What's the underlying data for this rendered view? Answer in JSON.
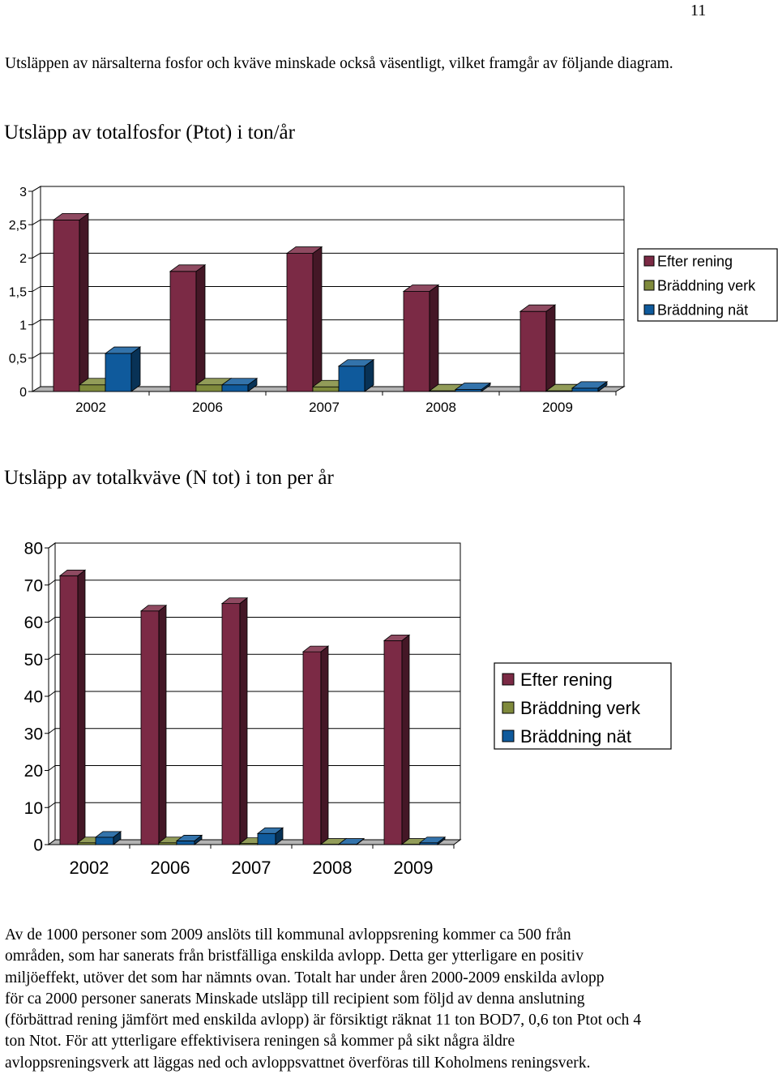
{
  "page_number": "11",
  "intro_text": "Utsläppen av närsalterna fosfor och kväve minskade också väsentligt, vilket framgår av följande diagram.",
  "chart_data": [
    {
      "type": "bar",
      "title": "Utsläpp av totalfosfor (Ptot) i ton/år",
      "xlabel": "",
      "ylabel": "",
      "categories": [
        "2002",
        "2006",
        "2007",
        "2008",
        "2009"
      ],
      "ylim": [
        0,
        3
      ],
      "yticks": [
        "0",
        "0,5",
        "1",
        "1,5",
        "2",
        "2,5",
        "3"
      ],
      "legend_position": "right",
      "series": [
        {
          "name": "Efter rening",
          "color": "#7b2a45",
          "values": [
            2.57,
            1.8,
            2.07,
            1.5,
            1.2
          ]
        },
        {
          "name": "Bräddning verk",
          "color": "#7f8a3c",
          "values": [
            0.1,
            0.1,
            0.07,
            0.01,
            0.01
          ]
        },
        {
          "name": "Bräddning nät",
          "color": "#0f5a9c",
          "values": [
            0.57,
            0.1,
            0.38,
            0.03,
            0.05
          ]
        }
      ]
    },
    {
      "type": "bar",
      "title": "Utsläpp av totalkväve (N tot) i ton per år",
      "xlabel": "",
      "ylabel": "",
      "categories": [
        "2002",
        "2006",
        "2007",
        "2008",
        "2009"
      ],
      "ylim": [
        0,
        80
      ],
      "yticks": [
        "0",
        "10",
        "20",
        "30",
        "40",
        "50",
        "60",
        "70",
        "80"
      ],
      "legend_position": "right",
      "series": [
        {
          "name": "Efter rening",
          "color": "#7b2a45",
          "values": [
            72.5,
            63,
            65,
            52,
            55
          ]
        },
        {
          "name": "Bräddning verk",
          "color": "#7f8a3c",
          "values": [
            0.5,
            0.5,
            0.3,
            0.1,
            0.1
          ]
        },
        {
          "name": "Bräddning nät",
          "color": "#0f5a9c",
          "values": [
            2,
            1,
            3,
            0.1,
            0.5
          ]
        }
      ]
    }
  ],
  "body_lines": [
    "Av de 1000 personer som 2009 anslöts till kommunal avloppsrening kommer ca 500 från",
    "områden, som har sanerats från bristfälliga enskilda avlopp. Detta ger ytterligare en positiv",
    "miljöeffekt, utöver det som har nämnts ovan. Totalt har under åren 2000-2009 enskilda avlopp",
    "för ca 2000 personer sanerats Minskade utsläpp till recipient som följd av denna anslutning",
    "(förbättrad rening jämfört med enskilda avlopp) är försiktigt räknat 11 ton BOD7, 0,6 ton Ptot och 4",
    "ton Ntot.  För att ytterligare effektivisera reningen så kommer på sikt några äldre",
    "avloppsreningsverk att läggas ned och avloppsvattnet överföras till Koholmens reningsverk."
  ]
}
